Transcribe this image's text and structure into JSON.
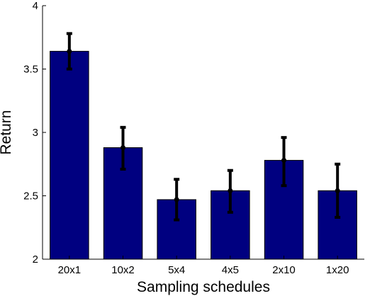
{
  "chart_data": {
    "type": "bar",
    "title": "",
    "xlabel": "Sampling schedules",
    "ylabel": "Return",
    "categories": [
      "20x1",
      "10x2",
      "5x4",
      "4x5",
      "2x10",
      "1x20"
    ],
    "values": [
      3.64,
      2.88,
      2.47,
      2.54,
      2.78,
      2.54
    ],
    "error_low": [
      3.5,
      2.71,
      2.31,
      2.37,
      2.58,
      2.33
    ],
    "error_high": [
      3.78,
      3.04,
      2.63,
      2.7,
      2.96,
      2.75
    ],
    "ylim": [
      2,
      4
    ],
    "yticks": [
      "2",
      "2.5",
      "3",
      "3.5",
      "4"
    ],
    "grid": false,
    "bar_color": "#000080",
    "error_color": "#000000"
  }
}
